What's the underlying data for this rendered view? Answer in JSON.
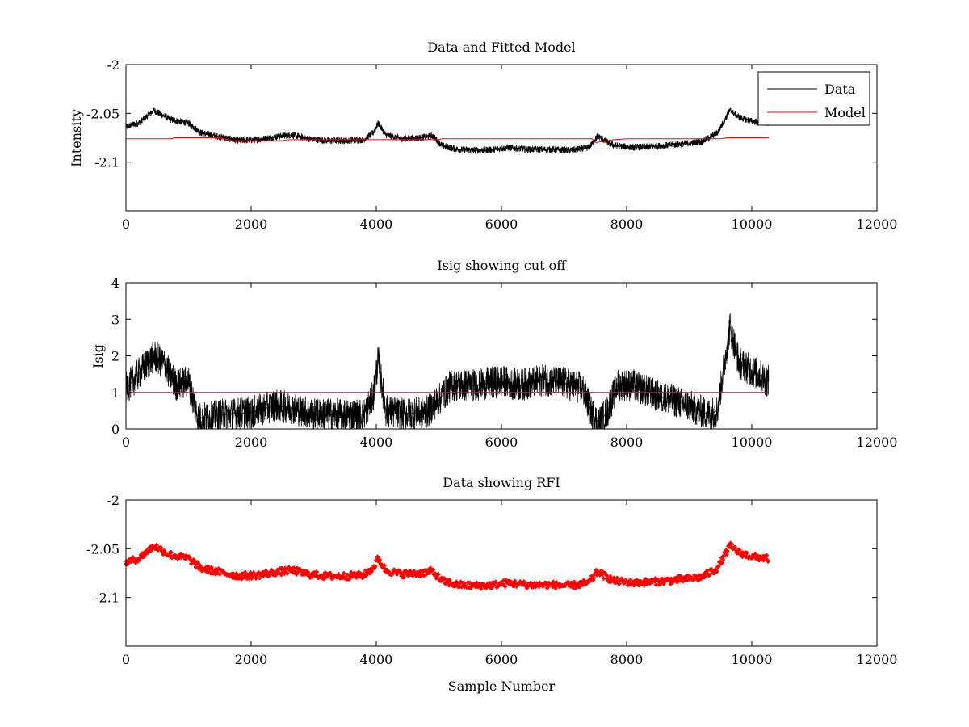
{
  "chart_data": [
    {
      "type": "line",
      "title": "Data and Fitted Model",
      "xlabel": "",
      "ylabel": "Intensity",
      "xlim": [
        0,
        12000
      ],
      "ylim": [
        -2.15,
        -2.0
      ],
      "xticks": [
        0,
        2000,
        4000,
        6000,
        8000,
        10000,
        12000
      ],
      "yticks": [
        -2.1,
        -2.05,
        -2
      ],
      "ytick_labels": [
        "-2.1",
        "-2.05",
        "-2"
      ],
      "xtick_labels": [
        "0",
        "2000",
        "4000",
        "6000",
        "8000",
        "10000",
        "12000"
      ],
      "legend_position": "top-right",
      "series": [
        {
          "name": "Data",
          "color": "#000000",
          "style": "noisy-line",
          "noise": 0.0035,
          "x": [
            0,
            200,
            450,
            700,
            1000,
            1200,
            1500,
            1800,
            2100,
            2400,
            2650,
            2900,
            3200,
            3500,
            3800,
            3950,
            4030,
            4150,
            4400,
            4700,
            4900,
            5050,
            5300,
            5600,
            5900,
            6100,
            6400,
            6800,
            7100,
            7400,
            7540,
            7650,
            7800,
            8100,
            8400,
            8800,
            9200,
            9450,
            9650,
            9800,
            10000,
            10270
          ],
          "y": [
            -2.064,
            -2.06,
            -2.047,
            -2.056,
            -2.06,
            -2.07,
            -2.074,
            -2.078,
            -2.077,
            -2.074,
            -2.072,
            -2.076,
            -2.078,
            -2.078,
            -2.077,
            -2.07,
            -2.06,
            -2.072,
            -2.076,
            -2.075,
            -2.073,
            -2.083,
            -2.087,
            -2.088,
            -2.087,
            -2.085,
            -2.087,
            -2.087,
            -2.088,
            -2.085,
            -2.073,
            -2.078,
            -2.083,
            -2.085,
            -2.084,
            -2.082,
            -2.079,
            -2.07,
            -2.047,
            -2.054,
            -2.058,
            -2.06
          ]
        },
        {
          "name": "Model",
          "color": "#ff0000",
          "style": "line",
          "x": [
            0,
            750,
            760,
            1500,
            1700,
            2500,
            2600,
            5000,
            5050,
            7450,
            7500,
            7800,
            8000,
            9500,
            9600,
            10270
          ],
          "y": [
            -2.076,
            -2.076,
            -2.075,
            -2.075,
            -2.078,
            -2.078,
            -2.077,
            -2.077,
            -2.076,
            -2.076,
            -2.08,
            -2.077,
            -2.076,
            -2.076,
            -2.075,
            -2.075
          ]
        }
      ]
    },
    {
      "type": "line",
      "title": "Isig showing cut off",
      "xlabel": "",
      "ylabel": "Isig",
      "xlim": [
        0,
        12000
      ],
      "ylim": [
        0,
        4
      ],
      "xticks": [
        0,
        2000,
        4000,
        6000,
        8000,
        10000,
        12000
      ],
      "yticks": [
        0,
        1,
        2,
        3,
        4
      ],
      "ytick_labels": [
        "0",
        "1",
        "2",
        "3",
        "4"
      ],
      "xtick_labels": [
        "0",
        "2000",
        "4000",
        "6000",
        "8000",
        "10000",
        "12000"
      ],
      "series": [
        {
          "name": "",
          "color": "#000000",
          "style": "noisy-line",
          "noise": 0.45,
          "x": [
            0,
            200,
            450,
            600,
            800,
            1000,
            1150,
            1300,
            1600,
            2000,
            2400,
            2700,
            3000,
            3400,
            3800,
            3950,
            4030,
            4150,
            4400,
            4800,
            5000,
            5200,
            5600,
            6000,
            6300,
            6700,
            7000,
            7300,
            7450,
            7550,
            7700,
            7850,
            8100,
            8500,
            8900,
            9300,
            9450,
            9650,
            9800,
            10000,
            10270
          ],
          "y": [
            1.1,
            1.5,
            2.0,
            1.8,
            1.2,
            1.3,
            0.3,
            0.3,
            0.4,
            0.45,
            0.65,
            0.55,
            0.4,
            0.4,
            0.4,
            0.9,
            1.9,
            0.5,
            0.4,
            0.45,
            0.8,
            1.2,
            1.2,
            1.3,
            1.2,
            1.35,
            1.25,
            1.1,
            0.4,
            0.15,
            0.5,
            1.2,
            1.2,
            0.9,
            0.7,
            0.4,
            0.5,
            2.8,
            1.8,
            1.6,
            1.3
          ]
        },
        {
          "name": "",
          "color": "#ff0000",
          "style": "line",
          "x": [
            0,
            10270
          ],
          "y": [
            1,
            1
          ]
        }
      ]
    },
    {
      "type": "scatter",
      "title": "Data showing RFI",
      "xlabel": "Sample Number",
      "ylabel": "",
      "xlim": [
        0,
        12000
      ],
      "ylim": [
        -2.15,
        -2.0
      ],
      "xticks": [
        0,
        2000,
        4000,
        6000,
        8000,
        10000,
        12000
      ],
      "yticks": [
        -2.1,
        -2.05,
        -2
      ],
      "ytick_labels": [
        "-2.1",
        "-2.05",
        "-2"
      ],
      "xtick_labels": [
        "0",
        "2000",
        "4000",
        "6000",
        "8000",
        "10000",
        "12000"
      ],
      "series": [
        {
          "name": "",
          "color": "#ff0000",
          "style": "noisy-markers",
          "noise": 0.0035,
          "x": [
            0,
            200,
            450,
            700,
            1000,
            1200,
            1500,
            1800,
            2100,
            2400,
            2650,
            2900,
            3200,
            3500,
            3800,
            3950,
            4030,
            4150,
            4400,
            4700,
            4900,
            5050,
            5300,
            5600,
            5900,
            6100,
            6400,
            6800,
            7100,
            7400,
            7540,
            7650,
            7800,
            8100,
            8400,
            8800,
            9200,
            9450,
            9650,
            9800,
            10000,
            10270
          ],
          "y": [
            -2.064,
            -2.06,
            -2.047,
            -2.056,
            -2.06,
            -2.07,
            -2.074,
            -2.078,
            -2.077,
            -2.074,
            -2.072,
            -2.076,
            -2.078,
            -2.078,
            -2.077,
            -2.07,
            -2.06,
            -2.072,
            -2.076,
            -2.075,
            -2.073,
            -2.083,
            -2.087,
            -2.088,
            -2.087,
            -2.085,
            -2.087,
            -2.087,
            -2.088,
            -2.085,
            -2.073,
            -2.078,
            -2.083,
            -2.085,
            -2.084,
            -2.082,
            -2.079,
            -2.07,
            -2.047,
            -2.054,
            -2.058,
            -2.06
          ]
        }
      ]
    }
  ]
}
